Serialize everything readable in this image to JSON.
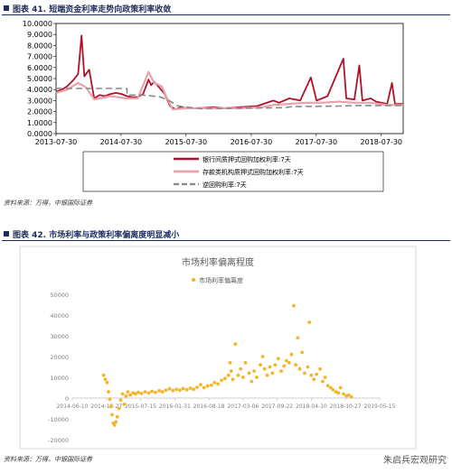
{
  "fig1": {
    "title": "图表 41. 短端资金利率走势向政策利率收敛",
    "source": "资料来源：万得，中银国际证券"
  },
  "fig2": {
    "title": "图表 42. 市场利率与政策利率偏离度明显减小",
    "source": "资料来源：万得，中银国际证券"
  },
  "watermark": "朱启兵宏观研究",
  "colors": {
    "accent": "#1f2d5c",
    "series1": "#b0122b",
    "series2": "#e9a3a8",
    "series3": "#888888",
    "scatter": "#f2b52b"
  },
  "chart_data": [
    {
      "type": "line",
      "title": "",
      "xlabel": "",
      "ylabel": "",
      "x_ticks": [
        "2013-07-30",
        "2014-07-30",
        "2015-07-30",
        "2016-07-30",
        "2017-07-30",
        "2018-07-30"
      ],
      "y_ticks": [
        "0.0000",
        "1.0000",
        "2.0000",
        "3.0000",
        "4.0000",
        "5.0000",
        "6.0000",
        "7.0000",
        "8.0000",
        "9.0000",
        "10.0000"
      ],
      "ylim": [
        0,
        10
      ],
      "xlim": [
        "2013-07-30",
        "2018-11-30"
      ],
      "legend_position": "bottom",
      "grid": false,
      "series": [
        {
          "name": "银行间质押式回购加权利率:7天",
          "points": [
            [
              "2013-07-30",
              3.8
            ],
            [
              "2013-09-01",
              4.0
            ],
            [
              "2013-10-01",
              4.3
            ],
            [
              "2013-11-01",
              4.8
            ],
            [
              "2013-12-01",
              5.4
            ],
            [
              "2013-12-20",
              8.9
            ],
            [
              "2014-01-05",
              5.2
            ],
            [
              "2014-02-01",
              5.8
            ],
            [
              "2014-03-01",
              3.2
            ],
            [
              "2014-04-01",
              3.5
            ],
            [
              "2014-05-01",
              3.4
            ],
            [
              "2014-06-01",
              3.6
            ],
            [
              "2014-07-01",
              3.7
            ],
            [
              "2014-08-01",
              3.6
            ],
            [
              "2014-09-01",
              3.4
            ],
            [
              "2014-10-01",
              3.3
            ],
            [
              "2014-11-01",
              3.3
            ],
            [
              "2014-12-01",
              3.6
            ],
            [
              "2014-12-31",
              4.9
            ],
            [
              "2015-01-15",
              4.4
            ],
            [
              "2015-02-01",
              4.7
            ],
            [
              "2015-03-01",
              4.2
            ],
            [
              "2015-04-01",
              3.6
            ],
            [
              "2015-05-01",
              2.5
            ],
            [
              "2015-06-01",
              2.2
            ],
            [
              "2015-07-01",
              2.4
            ],
            [
              "2015-08-01",
              2.3
            ],
            [
              "2015-10-01",
              2.3
            ],
            [
              "2016-01-01",
              2.4
            ],
            [
              "2016-03-01",
              2.3
            ],
            [
              "2016-06-01",
              2.4
            ],
            [
              "2016-09-01",
              2.5
            ],
            [
              "2016-12-01",
              3.0
            ],
            [
              "2017-01-01",
              2.8
            ],
            [
              "2017-03-01",
              3.2
            ],
            [
              "2017-05-01",
              3.0
            ],
            [
              "2017-06-30",
              5.1
            ],
            [
              "2017-08-01",
              3.0
            ],
            [
              "2017-10-01",
              3.4
            ],
            [
              "2017-12-29",
              6.8
            ],
            [
              "2018-01-15",
              3.2
            ],
            [
              "2018-03-01",
              3.1
            ],
            [
              "2018-03-29",
              6.2
            ],
            [
              "2018-04-15",
              3.0
            ],
            [
              "2018-06-01",
              3.2
            ],
            [
              "2018-07-01",
              2.9
            ],
            [
              "2018-09-01",
              2.7
            ],
            [
              "2018-09-28",
              4.6
            ],
            [
              "2018-10-15",
              2.7
            ],
            [
              "2018-11-30",
              2.7
            ]
          ]
        },
        {
          "name": "存款类机构质押式回购加权利率:7天",
          "points": [
            [
              "2013-07-30",
              3.7
            ],
            [
              "2013-10-01",
              4.0
            ],
            [
              "2013-12-01",
              4.6
            ],
            [
              "2014-01-15",
              4.2
            ],
            [
              "2014-03-01",
              3.1
            ],
            [
              "2014-06-01",
              3.4
            ],
            [
              "2014-09-01",
              3.2
            ],
            [
              "2014-11-01",
              3.2
            ],
            [
              "2014-12-31",
              5.6
            ],
            [
              "2015-02-01",
              4.6
            ],
            [
              "2015-03-15",
              4.3
            ],
            [
              "2015-04-15",
              3.2
            ],
            [
              "2015-05-15",
              2.2
            ],
            [
              "2015-08-01",
              2.3
            ],
            [
              "2016-01-01",
              2.3
            ],
            [
              "2016-06-01",
              2.3
            ],
            [
              "2016-10-01",
              2.4
            ],
            [
              "2016-12-01",
              2.6
            ],
            [
              "2017-03-01",
              2.7
            ],
            [
              "2017-06-01",
              2.8
            ],
            [
              "2017-09-01",
              2.8
            ],
            [
              "2017-12-01",
              2.9
            ],
            [
              "2018-03-01",
              2.8
            ],
            [
              "2018-06-01",
              2.8
            ],
            [
              "2018-09-01",
              2.6
            ],
            [
              "2018-11-30",
              2.6
            ]
          ]
        },
        {
          "name": "逆回购利率:7天",
          "points": [
            [
              "2013-07-30",
              4.1
            ],
            [
              "2014-09-01",
              4.1
            ],
            [
              "2014-09-02",
              3.5
            ],
            [
              "2014-12-01",
              3.5
            ],
            [
              "2015-03-01",
              3.35
            ],
            [
              "2015-04-15",
              3.1
            ],
            [
              "2015-05-15",
              2.8
            ],
            [
              "2015-06-15",
              2.5
            ],
            [
              "2015-09-01",
              2.35
            ],
            [
              "2015-10-26",
              2.25
            ],
            [
              "2017-02-03",
              2.35
            ],
            [
              "2017-03-16",
              2.45
            ],
            [
              "2017-12-14",
              2.5
            ],
            [
              "2018-03-22",
              2.55
            ],
            [
              "2018-11-30",
              2.55
            ]
          ]
        }
      ]
    },
    {
      "type": "scatter",
      "title": "市场利率偏离程度",
      "xlabel": "",
      "ylabel": "",
      "legend_position": "top",
      "grid": false,
      "x_ticks": [
        "2014-06-10",
        "2014-12-27",
        "2015-07-15",
        "2016-01-31",
        "2016-08-18",
        "2017-03-06",
        "2017-09-22",
        "2018-04-10",
        "2018-10-27",
        "2019-05-15"
      ],
      "y_ticks": [
        "50000",
        "40000",
        "30000",
        "20000",
        "10000",
        "0",
        "-10000",
        "-20000"
      ],
      "ylim": [
        -20000,
        50000
      ],
      "xlim": [
        "2014-06-10",
        "2019-05-15"
      ],
      "series": [
        {
          "name": "市场利率偏离度",
          "points": [
            [
              "2014-12-10",
              11000
            ],
            [
              "2014-12-20",
              9000
            ],
            [
              "2014-12-31",
              7500
            ],
            [
              "2015-01-08",
              3000
            ],
            [
              "2015-01-15",
              -500
            ],
            [
              "2015-01-22",
              -4000
            ],
            [
              "2015-01-29",
              -8000
            ],
            [
              "2015-02-05",
              -12000
            ],
            [
              "2015-02-12",
              -13000
            ],
            [
              "2015-02-20",
              -11500
            ],
            [
              "2015-02-28",
              -9000
            ],
            [
              "2015-03-10",
              -5000
            ],
            [
              "2015-03-20",
              -1000
            ],
            [
              "2015-03-31",
              2000
            ],
            [
              "2015-04-10",
              -3000
            ],
            [
              "2015-04-20",
              1000
            ],
            [
              "2015-05-01",
              3000
            ],
            [
              "2015-05-15",
              1500
            ],
            [
              "2015-06-01",
              2500
            ],
            [
              "2015-06-15",
              2000
            ],
            [
              "2015-07-01",
              2800
            ],
            [
              "2015-07-20",
              2200
            ],
            [
              "2015-08-10",
              3000
            ],
            [
              "2015-09-01",
              2500
            ],
            [
              "2015-09-20",
              3200
            ],
            [
              "2015-10-10",
              2800
            ],
            [
              "2015-11-01",
              3500
            ],
            [
              "2015-11-20",
              3000
            ],
            [
              "2015-12-10",
              3800
            ],
            [
              "2015-12-31",
              4500
            ],
            [
              "2016-01-20",
              3600
            ],
            [
              "2016-02-10",
              4200
            ],
            [
              "2016-03-01",
              3800
            ],
            [
              "2016-03-20",
              4600
            ],
            [
              "2016-04-10",
              4000
            ],
            [
              "2016-05-01",
              4800
            ],
            [
              "2016-05-20",
              4200
            ],
            [
              "2016-06-10",
              5200
            ],
            [
              "2016-06-30",
              6500
            ],
            [
              "2016-07-20",
              5000
            ],
            [
              "2016-08-10",
              5800
            ],
            [
              "2016-09-01",
              6200
            ],
            [
              "2016-09-20",
              7500
            ],
            [
              "2016-10-10",
              6800
            ],
            [
              "2016-10-31",
              8500
            ],
            [
              "2016-11-20",
              9500
            ],
            [
              "2016-12-10",
              11000
            ],
            [
              "2016-12-20",
              17000
            ],
            [
              "2016-12-26",
              13000
            ],
            [
              "2017-01-05",
              9000
            ],
            [
              "2017-01-20",
              26000
            ],
            [
              "2017-02-05",
              11000
            ],
            [
              "2017-02-20",
              14000
            ],
            [
              "2017-03-06",
              10000
            ],
            [
              "2017-03-20",
              17000
            ],
            [
              "2017-04-10",
              12000
            ],
            [
              "2017-04-25",
              8000
            ],
            [
              "2017-05-10",
              13000
            ],
            [
              "2017-05-25",
              10000
            ],
            [
              "2017-06-15",
              16000
            ],
            [
              "2017-06-29",
              20000
            ],
            [
              "2017-07-10",
              14000
            ],
            [
              "2017-07-25",
              11000
            ],
            [
              "2017-08-10",
              15000
            ],
            [
              "2017-08-25",
              12000
            ],
            [
              "2017-09-10",
              16000
            ],
            [
              "2017-09-28",
              19000
            ],
            [
              "2017-10-15",
              13000
            ],
            [
              "2017-11-01",
              15500
            ],
            [
              "2017-11-15",
              18000
            ],
            [
              "2017-12-01",
              17000
            ],
            [
              "2017-12-15",
              21000
            ],
            [
              "2017-12-28",
              44500
            ],
            [
              "2018-01-08",
              16000
            ],
            [
              "2018-01-20",
              29000
            ],
            [
              "2018-02-01",
              14000
            ],
            [
              "2018-02-14",
              22000
            ],
            [
              "2018-03-01",
              12000
            ],
            [
              "2018-03-20",
              15000
            ],
            [
              "2018-03-29",
              36500
            ],
            [
              "2018-04-10",
              11000
            ],
            [
              "2018-04-25",
              9000
            ],
            [
              "2018-05-10",
              11500
            ],
            [
              "2018-05-31",
              14000
            ],
            [
              "2018-06-15",
              8000
            ],
            [
              "2018-06-29",
              10000
            ],
            [
              "2018-07-15",
              6000
            ],
            [
              "2018-08-01",
              5000
            ],
            [
              "2018-08-15",
              4000
            ],
            [
              "2018-09-01",
              3000
            ],
            [
              "2018-09-15",
              2500
            ],
            [
              "2018-09-28",
              5000
            ],
            [
              "2018-10-15",
              2000
            ],
            [
              "2018-11-01",
              1000
            ],
            [
              "2018-11-15",
              1500
            ],
            [
              "2018-12-01",
              500
            ]
          ]
        }
      ]
    }
  ]
}
